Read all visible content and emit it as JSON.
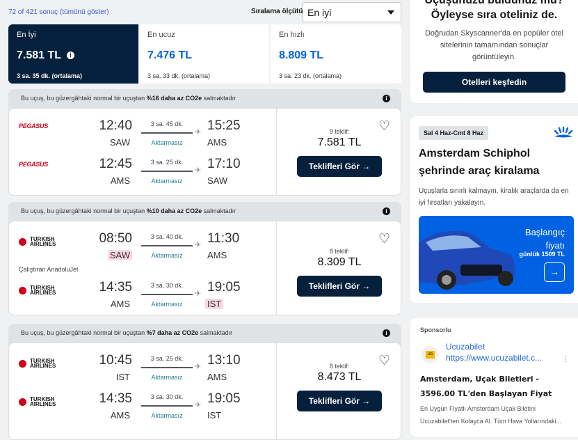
{
  "results_count": "72 of 421 sonuç (tümünü göster)",
  "sort": {
    "label": "Sıralama ölçütü",
    "value": "En iyi"
  },
  "tabs": [
    {
      "label": "En İyi",
      "price": "7.581 TL",
      "duration": "3 sa. 35 dk. (ortalama)",
      "selected": true
    },
    {
      "label": "En ucuz",
      "price": "7.476 TL",
      "duration": "3 sa. 33 dk. (ortalama)",
      "selected": false
    },
    {
      "label": "En hızlı",
      "price": "8.809 TL",
      "duration": "3 sa. 23 dk. (ortalama)",
      "selected": false
    }
  ],
  "flights": [
    {
      "eco_pre": "Bu uçuş, bu güzergâhtaki normal bir uçuştan ",
      "eco_bold": "%16 daha az CO2e",
      "eco_post": " salmaktadır",
      "offers": "9 teklif:",
      "price": "7.581 TL",
      "button": "Teklifleri Gör →",
      "legs": [
        {
          "airline": "PEGASUS",
          "dep": "12:40",
          "dep_ap": "SAW",
          "dep_hl": false,
          "dur": "3 sa. 45 dk.",
          "stops": "Aktarmasız",
          "arr": "15:25",
          "arr_ap": "AMS",
          "arr_hl": false
        },
        {
          "airline": "PEGASUS",
          "dep": "12:45",
          "dep_ap": "AMS",
          "dep_hl": false,
          "dur": "3 sa. 25 dk.",
          "stops": "Aktarmasız",
          "arr": "17:10",
          "arr_ap": "SAW",
          "arr_hl": false
        }
      ]
    },
    {
      "eco_pre": "Bu uçuş, bu güzergâhtaki normal bir uçuştan ",
      "eco_bold": "%10 daha az CO2e",
      "eco_post": " salmaktadır",
      "offers": "8 teklif:",
      "price": "8.309 TL",
      "button": "Teklifleri Gör →",
      "operator": "Çalıştıran AnadoluJet",
      "legs": [
        {
          "airline": "TURKISH AIRLINES",
          "dep": "08:50",
          "dep_ap": "SAW",
          "dep_hl": true,
          "dur": "3 sa. 40 dk.",
          "stops": "Aktarmasız",
          "arr": "11:30",
          "arr_ap": "AMS",
          "arr_hl": false
        },
        {
          "airline": "TURKISH AIRLINES",
          "dep": "14:35",
          "dep_ap": "AMS",
          "dep_hl": false,
          "dur": "3 sa. 30 dk.",
          "stops": "Aktarmasız",
          "arr": "19:05",
          "arr_ap": "IST",
          "arr_hl": true
        }
      ]
    },
    {
      "eco_pre": "Bu uçuş, bu güzergâhtaki normal bir uçuştan ",
      "eco_bold": "%7 daha az CO2e",
      "eco_post": " salmaktadır",
      "offers": "8 teklif:",
      "price": "8.473 TL",
      "button": "Teklifleri Gör →",
      "legs": [
        {
          "airline": "TURKISH AIRLINES",
          "dep": "10:45",
          "dep_ap": "IST",
          "dep_hl": false,
          "dur": "3 sa. 25 dk.",
          "stops": "Aktarmasız",
          "arr": "13:10",
          "arr_ap": "AMS",
          "arr_hl": false
        },
        {
          "airline": "TURKISH AIRLINES",
          "dep": "14:35",
          "dep_ap": "AMS",
          "dep_hl": false,
          "dur": "3 sa. 30 dk.",
          "stops": "Aktarmasız",
          "arr": "19:05",
          "arr_ap": "IST",
          "arr_hl": false
        }
      ]
    }
  ],
  "hotel": {
    "heading": "Uçuşunuzu buldunuz mu? Öyleyse sıra oteliniz de.",
    "text": "Doğrudan Skyscanner'da en popüler otel sitelerinin tamamından sonuçlar görüntüleyin.",
    "button": "Otelleri keşfedin"
  },
  "car": {
    "dates": "Sal 4 Haz-Cmt 8 Haz",
    "heading": "Amsterdam Schiphol şehrinde araç kiralama",
    "text": "Uçuşlarla sınırlı kalmayın, kiralık araçlarda da en iyi fırsatları yakalayın.",
    "from": "Başlangıç fiyatı",
    "daily": "günlük 1509 TL"
  },
  "sponsor": {
    "label": "Sponsorlu",
    "name": "Ucuzabilet",
    "logo": "ub",
    "url": "https://www.ucuzabilet.c...",
    "title": "Amsterdam, Uçak Biletleri - 3596.00 TL'den Başlayan Fiyat",
    "desc": "En Uygun Fiyatlı Amsterdam Uçak Biletini Ucuzabilet'ten Kolayca Al. Tüm Hava Yollarındaki..."
  },
  "colors": {
    "navy": "#05203c",
    "accent": "#0062e3",
    "highlight": "#f9d6e3"
  }
}
